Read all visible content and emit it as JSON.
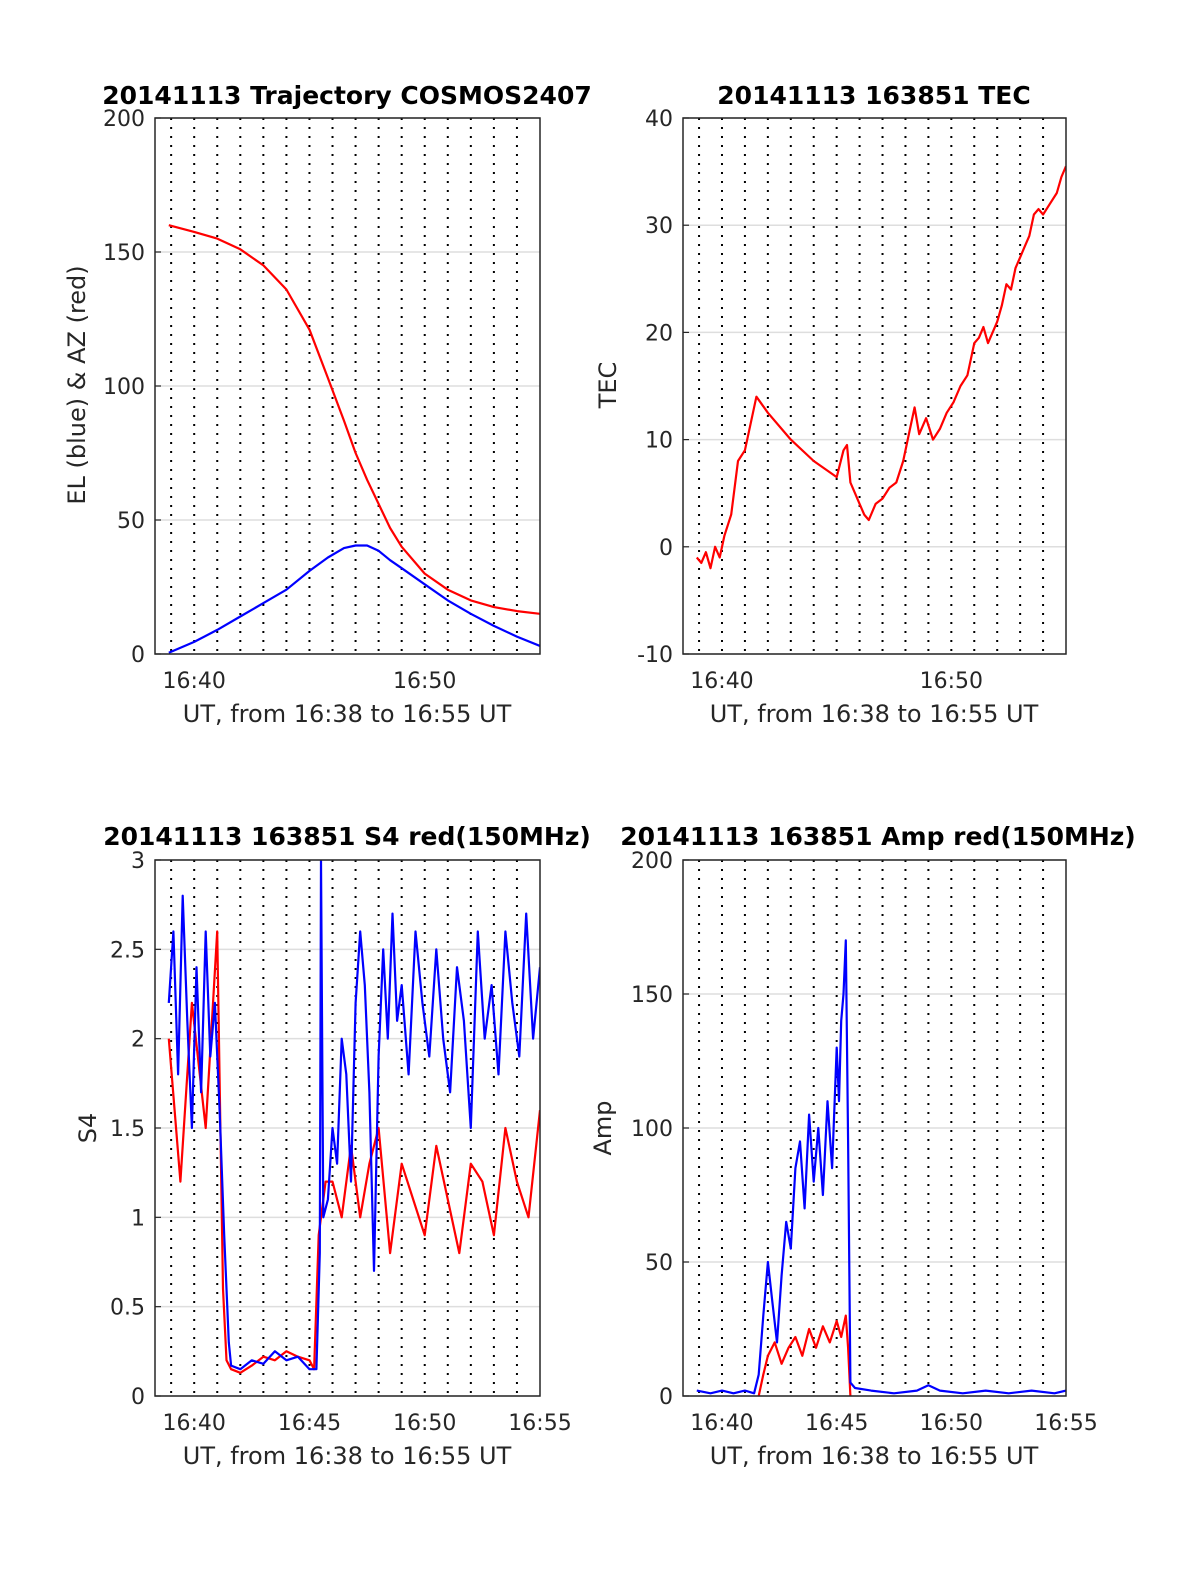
{
  "chart_data": [
    {
      "type": "line",
      "title": "20141113 Trajectory COSMOS2407",
      "xlabel": "UT, from 16:38 to 16:55 UT",
      "ylabel": "EL (blue) & AZ (red)",
      "xlim": [
        638.3,
        655.0
      ],
      "ylim": [
        0,
        200
      ],
      "xtick_labels": [
        {
          "x": 640,
          "label": "16:40"
        },
        {
          "x": 650,
          "label": "16:50"
        }
      ],
      "ytick_labels": [
        "0",
        "50",
        "100",
        "150",
        "200"
      ],
      "grid": true,
      "vgrid_minutes": [
        639,
        640,
        641,
        642,
        643,
        644,
        645,
        646,
        647,
        648,
        649,
        650,
        651,
        652,
        653,
        654
      ],
      "series": [
        {
          "color": "#ff0000",
          "x": [
            638.9,
            640,
            641,
            642,
            643,
            644,
            645,
            645.8,
            646.5,
            647,
            647.5,
            648,
            648.5,
            649,
            650,
            651,
            652,
            653,
            654,
            655
          ],
          "values": [
            160,
            157.5,
            155,
            151,
            145,
            136,
            121,
            103,
            87,
            75,
            65,
            56,
            47,
            40,
            30,
            24,
            20,
            17.5,
            16,
            15
          ]
        },
        {
          "color": "#0000ff",
          "x": [
            638.9,
            640,
            641,
            642,
            643,
            644,
            645,
            645.8,
            646.5,
            647,
            647.5,
            648,
            648.5,
            649,
            650,
            651,
            652,
            653,
            654,
            655
          ],
          "values": [
            0.5,
            4.5,
            9,
            14,
            19,
            24,
            31,
            36,
            39.5,
            40.5,
            40.5,
            38.5,
            35,
            32,
            26,
            20,
            15,
            10.5,
            6.5,
            3
          ]
        }
      ]
    },
    {
      "type": "line",
      "title": "20141113 163851 TEC",
      "xlabel": "UT, from 16:38 to 16:55 UT",
      "ylabel": "TEC",
      "xlim": [
        638.3,
        655.0
      ],
      "ylim": [
        -10,
        40
      ],
      "xtick_labels": [
        {
          "x": 640,
          "label": "16:40"
        },
        {
          "x": 650,
          "label": "16:50"
        }
      ],
      "ytick_labels": [
        "-10",
        "0",
        "10",
        "20",
        "30",
        "40"
      ],
      "grid": true,
      "vgrid_minutes": [
        639,
        640,
        641,
        642,
        643,
        644,
        645,
        646,
        647,
        648,
        649,
        650,
        651,
        652,
        653,
        654
      ],
      "series": [
        {
          "color": "#ff0000",
          "x": [
            638.9,
            639.1,
            639.3,
            639.5,
            639.7,
            639.9,
            640.1,
            640.4,
            640.7,
            641.0,
            641.3,
            641.5,
            642.0,
            643.0,
            644.0,
            645.0,
            645.3,
            645.45,
            645.6,
            645.8,
            646.0,
            646.2,
            646.4,
            646.7,
            647.0,
            647.3,
            647.6,
            647.9,
            648.2,
            648.4,
            648.6,
            648.9,
            649.2,
            649.5,
            649.8,
            650.1,
            650.4,
            650.7,
            651.0,
            651.2,
            651.4,
            651.6,
            651.8,
            652.0,
            652.2,
            652.4,
            652.6,
            652.8,
            653.0,
            653.2,
            653.4,
            653.6,
            653.8,
            654.0,
            654.3,
            654.6,
            654.8,
            655.0
          ],
          "values": [
            -1,
            -1.5,
            -0.5,
            -2,
            0,
            -1,
            1,
            3,
            8,
            9,
            12,
            14,
            12.5,
            10,
            8,
            6.5,
            9,
            9.5,
            6,
            5,
            4,
            3,
            2.5,
            4,
            4.5,
            5.5,
            6,
            8,
            11,
            13,
            10.5,
            12,
            10,
            11,
            12.5,
            13.5,
            15,
            16,
            19,
            19.5,
            20.5,
            19,
            20,
            21,
            22.5,
            24.5,
            24,
            26,
            27,
            28,
            29,
            31,
            31.5,
            31,
            32,
            33,
            34.5,
            35.5
          ]
        }
      ]
    },
    {
      "type": "line",
      "title": "20141113 163851 S4 red(150MHz)",
      "xlabel": "UT, from 16:38 to 16:55 UT",
      "ylabel": "S4",
      "xlim": [
        638.3,
        655.0
      ],
      "ylim": [
        0,
        3
      ],
      "xtick_labels": [
        {
          "x": 640,
          "label": "16:40"
        },
        {
          "x": 645,
          "label": "16:45"
        },
        {
          "x": 650,
          "label": "16:50"
        },
        {
          "x": 655,
          "label": "16:55"
        }
      ],
      "ytick_labels": [
        "0",
        "0.5",
        "1",
        "1.5",
        "2",
        "2.5",
        "3"
      ],
      "grid": true,
      "vgrid_minutes": [
        639,
        640,
        641,
        642,
        643,
        644,
        645,
        646,
        647,
        648,
        649,
        650,
        651,
        652,
        653,
        654
      ],
      "series": [
        {
          "color": "#ff0000",
          "x": [
            638.9,
            639.4,
            639.9,
            640.5,
            641.0,
            641.25,
            641.4,
            641.6,
            642.0,
            642.5,
            643.0,
            643.5,
            644.0,
            644.5,
            645.0,
            645.2,
            645.4,
            645.7,
            646.0,
            646.4,
            646.8,
            647.2,
            647.6,
            648.0,
            648.5,
            649.0,
            649.5,
            650.0,
            650.5,
            651.0,
            651.5,
            652.0,
            652.5,
            653.0,
            653.5,
            654.0,
            654.5,
            655.0
          ],
          "values": [
            2.0,
            1.2,
            2.2,
            1.5,
            2.6,
            0.6,
            0.2,
            0.15,
            0.13,
            0.17,
            0.22,
            0.2,
            0.25,
            0.22,
            0.2,
            0.15,
            0.9,
            1.2,
            1.2,
            1.0,
            1.4,
            1.0,
            1.3,
            1.5,
            0.8,
            1.3,
            1.1,
            0.9,
            1.4,
            1.1,
            0.8,
            1.3,
            1.2,
            0.9,
            1.5,
            1.2,
            1.0,
            1.6
          ]
        },
        {
          "color": "#0000ff",
          "x": [
            638.9,
            639.1,
            639.3,
            639.5,
            639.7,
            639.9,
            640.1,
            640.3,
            640.5,
            640.7,
            640.9,
            641.1,
            641.3,
            641.4,
            641.5,
            641.6,
            642.0,
            642.5,
            643.0,
            643.5,
            644.0,
            644.5,
            645.0,
            645.3,
            645.45,
            645.5,
            645.6,
            645.8,
            646.0,
            646.2,
            646.4,
            646.6,
            646.8,
            647.0,
            647.2,
            647.4,
            647.6,
            647.8,
            648.0,
            648.2,
            648.4,
            648.6,
            648.8,
            649.0,
            649.3,
            649.6,
            649.9,
            650.2,
            650.5,
            650.8,
            651.1,
            651.4,
            651.7,
            652.0,
            652.3,
            652.6,
            652.9,
            653.2,
            653.5,
            653.8,
            654.1,
            654.4,
            654.7,
            655.0
          ],
          "values": [
            2.2,
            2.6,
            1.8,
            2.8,
            2.1,
            1.5,
            2.4,
            1.7,
            2.6,
            1.9,
            2.2,
            1.6,
            0.9,
            0.6,
            0.3,
            0.17,
            0.15,
            0.2,
            0.18,
            0.25,
            0.2,
            0.22,
            0.15,
            0.15,
            0.8,
            3.0,
            1.0,
            1.1,
            1.5,
            1.3,
            2.0,
            1.8,
            1.2,
            2.2,
            2.6,
            2.3,
            1.7,
            0.7,
            1.9,
            2.5,
            2.0,
            2.7,
            2.1,
            2.3,
            1.8,
            2.6,
            2.2,
            1.9,
            2.5,
            2.0,
            1.7,
            2.4,
            2.1,
            1.5,
            2.6,
            2.0,
            2.3,
            1.8,
            2.6,
            2.2,
            1.9,
            2.7,
            2.0,
            2.4
          ]
        }
      ]
    },
    {
      "type": "line",
      "title": "20141113 163851 Amp red(150MHz)",
      "xlabel": "UT, from 16:38 to 16:55 UT",
      "ylabel": "Amp",
      "xlim": [
        638.3,
        655.0
      ],
      "ylim": [
        0,
        200
      ],
      "xtick_labels": [
        {
          "x": 640,
          "label": "16:40"
        },
        {
          "x": 645,
          "label": "16:45"
        },
        {
          "x": 650,
          "label": "16:50"
        },
        {
          "x": 655,
          "label": "16:55"
        }
      ],
      "ytick_labels": [
        "0",
        "50",
        "100",
        "150",
        "200"
      ],
      "grid": true,
      "vgrid_minutes": [
        639,
        640,
        641,
        642,
        643,
        644,
        645,
        646,
        647,
        648,
        649,
        650,
        651,
        652,
        653,
        654
      ],
      "series": [
        {
          "color": "#ff0000",
          "x": [
            641.6,
            641.8,
            642.0,
            642.3,
            642.6,
            642.9,
            643.2,
            643.5,
            643.8,
            644.1,
            644.4,
            644.7,
            645.0,
            645.2,
            645.4,
            645.5,
            645.6
          ],
          "values": [
            0,
            8,
            15,
            20,
            12,
            18,
            22,
            15,
            25,
            18,
            26,
            20,
            28,
            22,
            30,
            18,
            0
          ]
        },
        {
          "color": "#0000ff",
          "x": [
            638.9,
            639.5,
            640.0,
            640.5,
            641.0,
            641.4,
            641.6,
            641.8,
            642.0,
            642.2,
            642.4,
            642.6,
            642.8,
            643.0,
            643.2,
            643.4,
            643.6,
            643.8,
            644.0,
            644.2,
            644.4,
            644.6,
            644.8,
            645.0,
            645.1,
            645.2,
            645.3,
            645.4,
            645.5,
            645.6,
            645.8,
            646.5,
            647.5,
            648.5,
            649.0,
            649.5,
            650.5,
            651.5,
            652.5,
            653.5,
            654.5,
            655.0
          ],
          "values": [
            2,
            1,
            2,
            1,
            2,
            1,
            8,
            30,
            50,
            35,
            20,
            45,
            65,
            55,
            85,
            95,
            70,
            105,
            80,
            100,
            75,
            110,
            85,
            130,
            110,
            140,
            150,
            170,
            95,
            5,
            3,
            2,
            1,
            2,
            4,
            2,
            1,
            2,
            1,
            2,
            1,
            2
          ]
        }
      ]
    }
  ]
}
